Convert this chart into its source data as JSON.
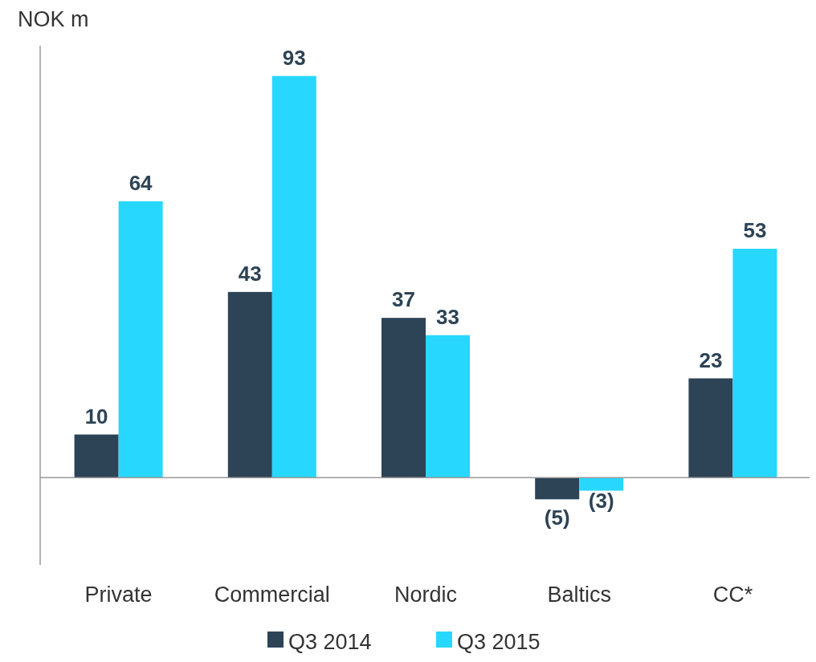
{
  "chart_data": {
    "type": "bar",
    "ylabel": "NOK m",
    "categories": [
      "Private",
      "Commercial",
      "Nordic",
      "Baltics",
      "CC*"
    ],
    "series": [
      {
        "name": "Q3 2014",
        "color": "#2d4356",
        "values": [
          10,
          43,
          37,
          -5,
          23
        ],
        "value_labels": [
          "10",
          "43",
          "37",
          "(5)",
          "23"
        ]
      },
      {
        "name": "Q3 2015",
        "color": "#27d7fd",
        "values": [
          64,
          93,
          33,
          -3,
          53
        ],
        "value_labels": [
          "64",
          "93",
          "33",
          "(3)",
          "53"
        ]
      }
    ],
    "ylim": [
      -20,
      100
    ],
    "tick_labels": "x",
    "legend": "bottom"
  }
}
